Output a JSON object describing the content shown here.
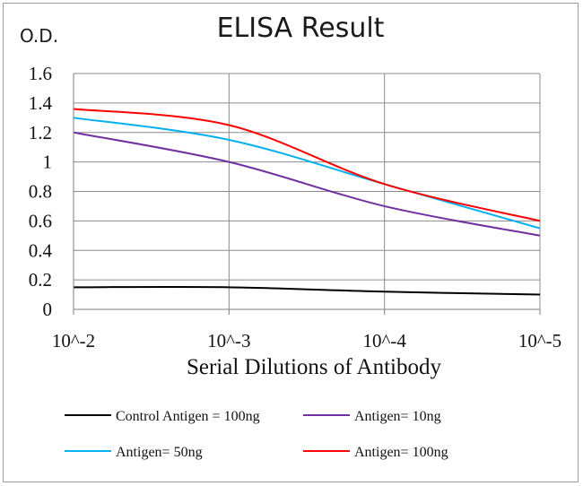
{
  "chart_data": {
    "type": "line",
    "title": "ELISA Result",
    "ylabel": "O.D.",
    "xlabel": "Serial Dilutions of Antibody",
    "x_categories": [
      "10^-2",
      "10^-3",
      "10^-4",
      "10^-5"
    ],
    "y_ticks": [
      "0",
      "0.2",
      "0.4",
      "0.6",
      "0.8",
      "1",
      "1.2",
      "1.4",
      "1.6"
    ],
    "ylim": [
      0,
      1.6
    ],
    "grid": "vertical and horizontal",
    "legend_position": "bottom",
    "series": [
      {
        "name": "Control Antigen = 100ng",
        "color": "#000000",
        "x": [
          0,
          1,
          2,
          3
        ],
        "values": [
          0.15,
          0.15,
          0.12,
          0.1
        ]
      },
      {
        "name": "Antigen= 10ng",
        "color": "#7030a0",
        "x": [
          0,
          1,
          2,
          3
        ],
        "values": [
          1.2,
          1.0,
          0.7,
          0.5
        ]
      },
      {
        "name": "Antigen= 50ng",
        "color": "#00b0f0",
        "x": [
          0,
          1,
          2,
          3
        ],
        "values": [
          1.3,
          1.15,
          0.85,
          0.55
        ]
      },
      {
        "name": "Antigen= 100ng",
        "color": "#ff0000",
        "x": [
          0,
          1,
          2,
          3
        ],
        "values": [
          1.36,
          1.25,
          0.85,
          0.6
        ]
      }
    ]
  }
}
